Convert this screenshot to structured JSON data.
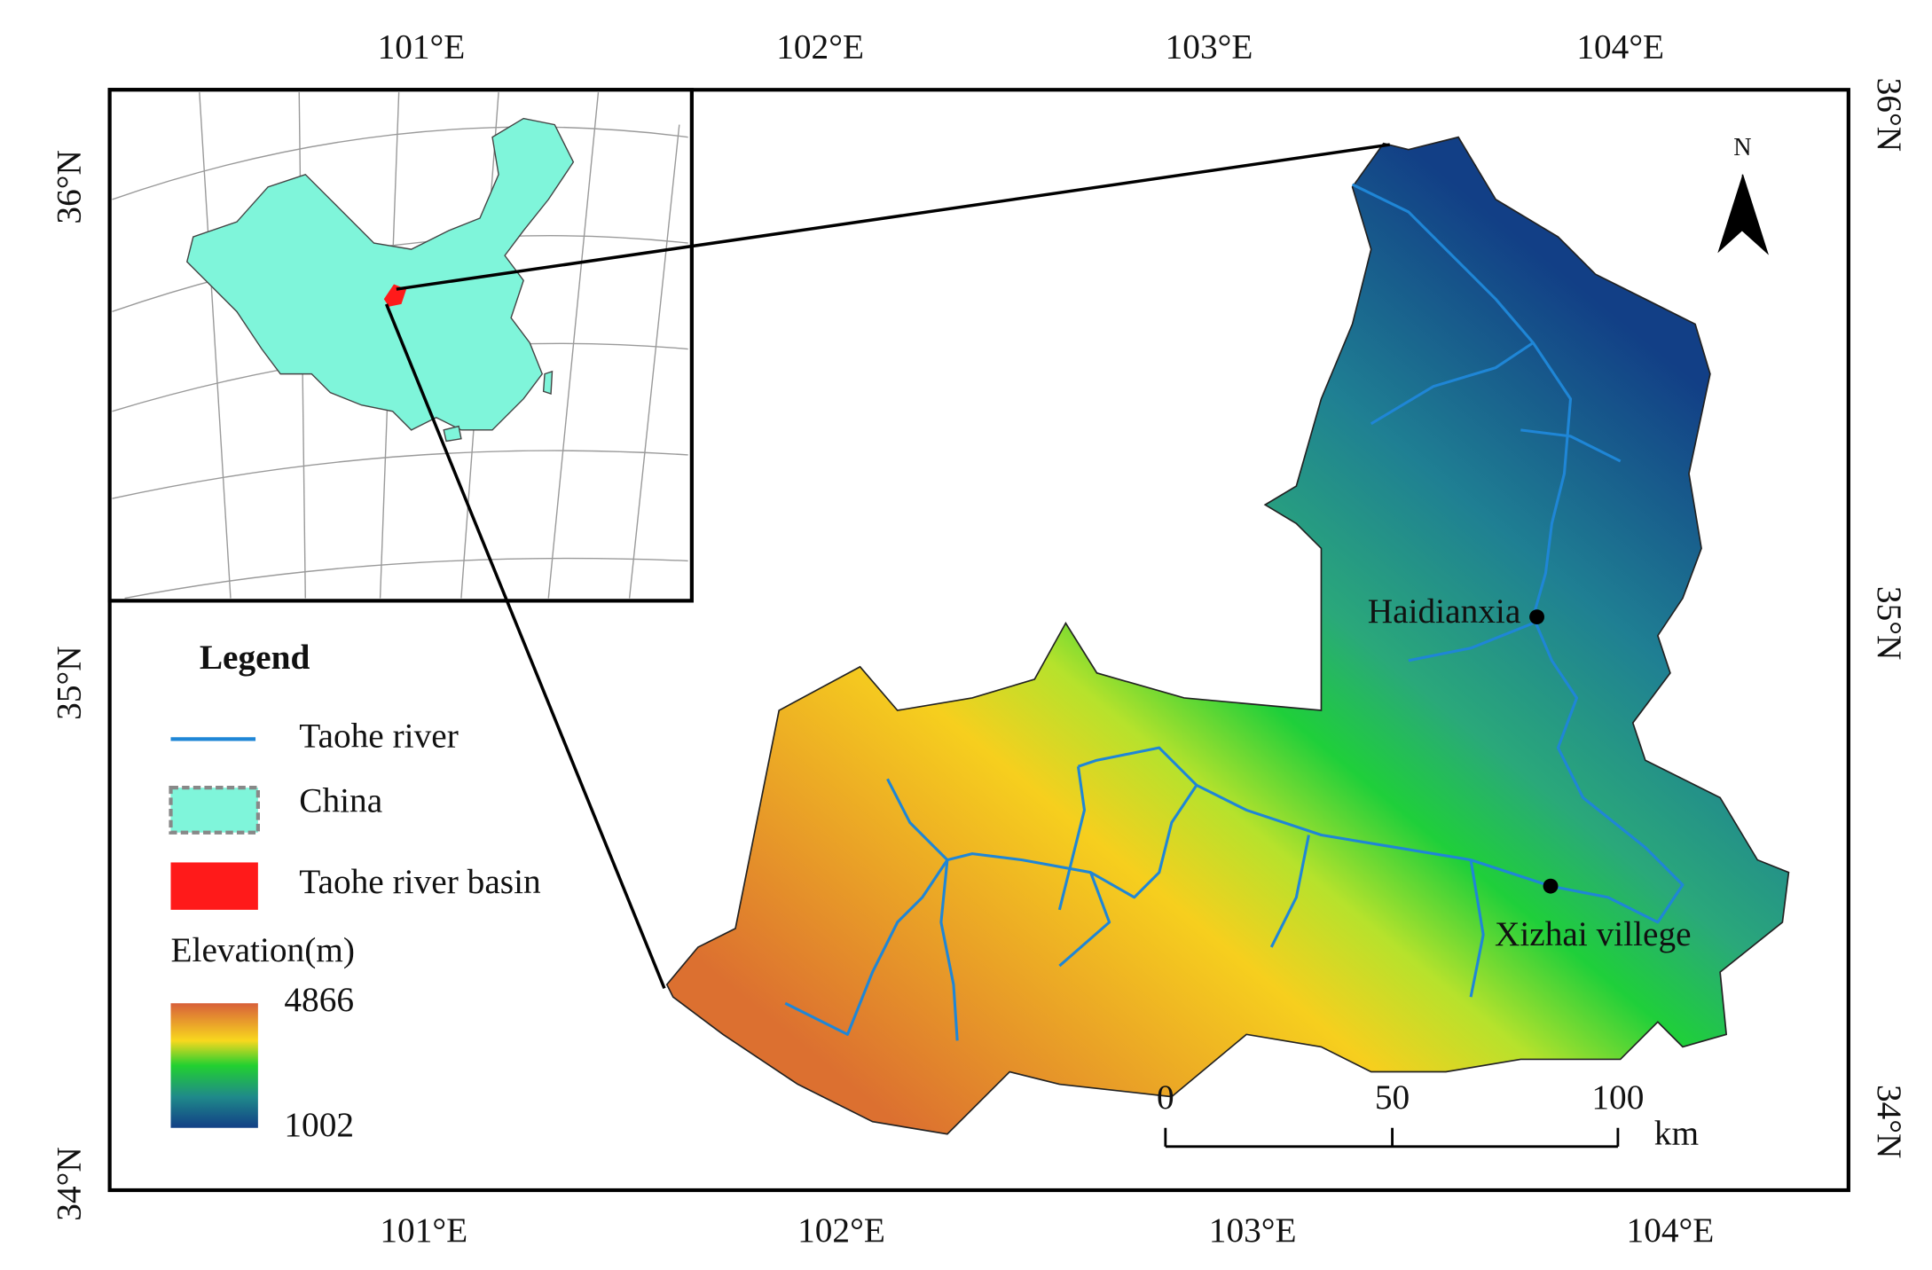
{
  "map": {
    "top_labels": [
      "101°E",
      "102°E",
      "103°E",
      "104°E"
    ],
    "bottom_labels": [
      "101°E",
      "102°E",
      "103°E",
      "104°E"
    ],
    "left_labels": [
      "36°N",
      "35°N",
      "34°N"
    ],
    "right_labels": [
      "36°N",
      "35°N",
      "34°N"
    ],
    "legend": {
      "title": "Legend",
      "items": [
        "Taohe river",
        "China",
        "Taohe river basin"
      ],
      "elevation_title": "Elevation(m)",
      "elevation_max": 4866,
      "elevation_min": 1002
    },
    "scale_bar": {
      "ticks": [
        0,
        50,
        100
      ],
      "unit": "km"
    },
    "north": "N",
    "sites": [
      "Haidianxia",
      "Xizhai villege"
    ]
  }
}
